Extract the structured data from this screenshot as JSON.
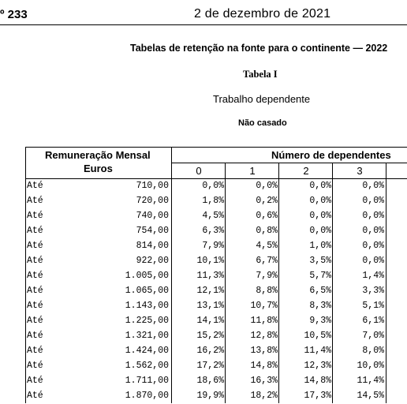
{
  "header": {
    "number": "º 233",
    "date": "2 de dezembro de 2021"
  },
  "title": "Tabelas de retenção na fonte para o continente — 2022",
  "table_name": "Tabela I",
  "subtitle": "Trabalho dependente",
  "status": "Não casado",
  "table": {
    "remuneracao_label": "Remuneração Mensal",
    "euros_label": "Euros",
    "dependentes_label": "Número de dependentes",
    "columns": [
      "0",
      "1",
      "2",
      "3"
    ],
    "rows": [
      {
        "prefix": "Até",
        "value": "710,00",
        "c0": "0,0%",
        "c1": "0,0%",
        "c2": "0,0%",
        "c3": "0,0%"
      },
      {
        "prefix": "Até",
        "value": "720,00",
        "c0": "1,8%",
        "c1": "0,2%",
        "c2": "0,0%",
        "c3": "0,0%"
      },
      {
        "prefix": "Até",
        "value": "740,00",
        "c0": "4,5%",
        "c1": "0,6%",
        "c2": "0,0%",
        "c3": "0,0%"
      },
      {
        "prefix": "Até",
        "value": "754,00",
        "c0": "6,3%",
        "c1": "0,8%",
        "c2": "0,0%",
        "c3": "0,0%"
      },
      {
        "prefix": "Até",
        "value": "814,00",
        "c0": "7,9%",
        "c1": "4,5%",
        "c2": "1,0%",
        "c3": "0,0%"
      },
      {
        "prefix": "Até",
        "value": "922,00",
        "c0": "10,1%",
        "c1": "6,7%",
        "c2": "3,5%",
        "c3": "0,0%"
      },
      {
        "prefix": "Até",
        "value": "1.005,00",
        "c0": "11,3%",
        "c1": "7,9%",
        "c2": "5,7%",
        "c3": "1,4%"
      },
      {
        "prefix": "Até",
        "value": "1.065,00",
        "c0": "12,1%",
        "c1": "8,8%",
        "c2": "6,5%",
        "c3": "3,3%"
      },
      {
        "prefix": "Até",
        "value": "1.143,00",
        "c0": "13,1%",
        "c1": "10,7%",
        "c2": "8,3%",
        "c3": "5,1%"
      },
      {
        "prefix": "Até",
        "value": "1.225,00",
        "c0": "14,1%",
        "c1": "11,8%",
        "c2": "9,3%",
        "c3": "6,1%"
      },
      {
        "prefix": "Até",
        "value": "1.321,00",
        "c0": "15,2%",
        "c1": "12,8%",
        "c2": "10,5%",
        "c3": "7,0%"
      },
      {
        "prefix": "Até",
        "value": "1.424,00",
        "c0": "16,2%",
        "c1": "13,8%",
        "c2": "11,4%",
        "c3": "8,0%"
      },
      {
        "prefix": "Até",
        "value": "1.562,00",
        "c0": "17,2%",
        "c1": "14,8%",
        "c2": "12,3%",
        "c3": "10,0%"
      },
      {
        "prefix": "Até",
        "value": "1.711,00",
        "c0": "18,6%",
        "c1": "16,3%",
        "c2": "14,8%",
        "c3": "11,4%"
      },
      {
        "prefix": "Até",
        "value": "1.870,00",
        "c0": "19,9%",
        "c1": "18,2%",
        "c2": "17,3%",
        "c3": "14,5%"
      }
    ]
  }
}
